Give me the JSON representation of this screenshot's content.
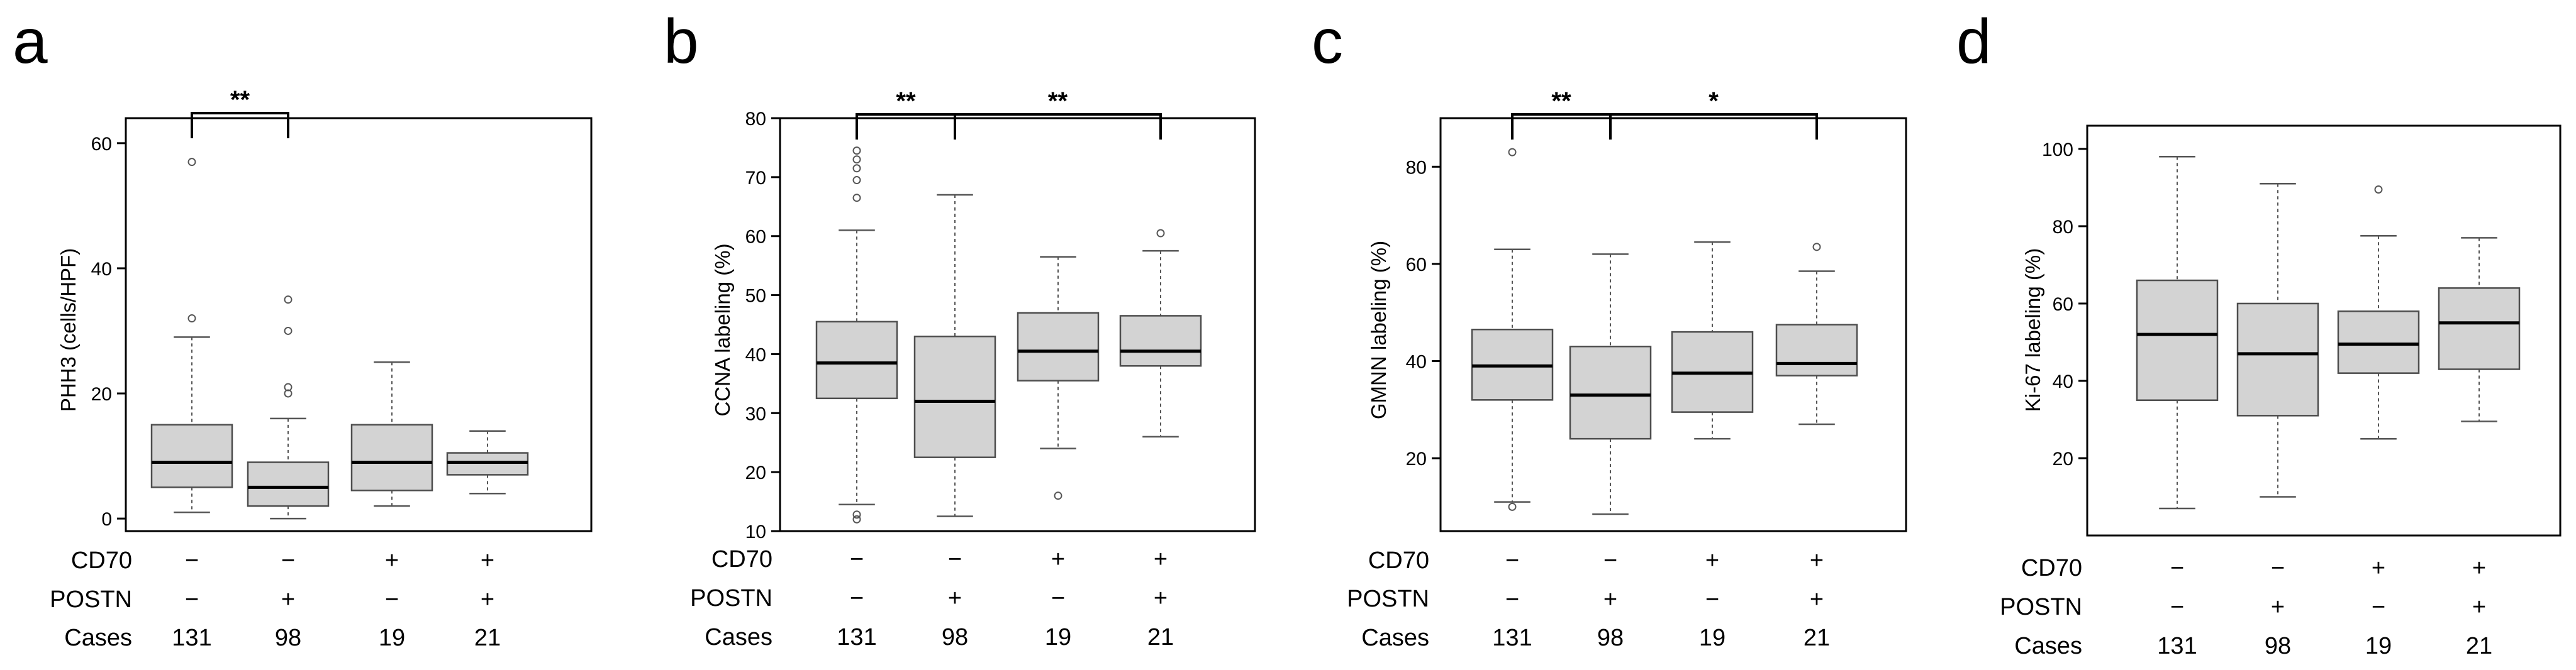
{
  "chart_data": [
    {
      "type": "box",
      "panel": "a",
      "ylabel": "PHH3 (cells/HPF)",
      "ylim": [
        -2,
        64
      ],
      "yticks": [
        0,
        20,
        40,
        60
      ],
      "ytick_labels": [
        "0",
        "20",
        "40",
        "60"
      ],
      "categories": [
        "CD70 − / POSTN −",
        "CD70 − / POSTN +",
        "CD70 + / POSTN −",
        "CD70 + / POSTN +"
      ],
      "boxes": [
        {
          "min": 1,
          "q1": 5,
          "median": 9,
          "q3": 15,
          "max": 29,
          "outliers": [
            32,
            57
          ]
        },
        {
          "min": 0,
          "q1": 2,
          "median": 5,
          "q3": 9,
          "max": 16,
          "outliers": [
            20,
            21,
            30,
            35
          ]
        },
        {
          "min": 2,
          "q1": 4.5,
          "median": 9,
          "q3": 15,
          "max": 25,
          "outliers": []
        },
        {
          "min": 4,
          "q1": 7,
          "median": 9,
          "q3": 10.5,
          "max": 14,
          "outliers": []
        }
      ],
      "significance": [
        {
          "from": 1,
          "to": 2,
          "label": "**"
        }
      ]
    },
    {
      "type": "box",
      "panel": "b",
      "ylabel": "CCNA labeling (%)",
      "ylim": [
        10,
        80
      ],
      "yticks": [
        10,
        20,
        30,
        40,
        50,
        60,
        70,
        80
      ],
      "ytick_labels": [
        "10",
        "20",
        "30",
        "40",
        "50",
        "60",
        "70",
        "80"
      ],
      "categories": [
        "CD70 − / POSTN −",
        "CD70 − / POSTN +",
        "CD70 + / POSTN −",
        "CD70 + / POSTN +"
      ],
      "boxes": [
        {
          "min": 14.5,
          "q1": 32.5,
          "median": 38.5,
          "q3": 45.5,
          "max": 61,
          "outliers": [
            12,
            12.8,
            66.5,
            69.5,
            71.5,
            73,
            74.5
          ]
        },
        {
          "min": 12.5,
          "q1": 22.5,
          "median": 32,
          "q3": 43,
          "max": 67,
          "outliers": []
        },
        {
          "min": 24,
          "q1": 35.5,
          "median": 40.5,
          "q3": 47,
          "max": 56.5,
          "outliers": [
            16
          ]
        },
        {
          "min": 26,
          "q1": 38,
          "median": 40.5,
          "q3": 46.5,
          "max": 57.5,
          "outliers": [
            60.5
          ]
        }
      ],
      "significance": [
        {
          "from": 1,
          "to": 2,
          "label": "**"
        },
        {
          "from": 2,
          "to": 4,
          "label": "**"
        }
      ]
    },
    {
      "type": "box",
      "panel": "c",
      "ylabel": "GMNN labeling (%)",
      "ylim": [
        5,
        90
      ],
      "yticks": [
        20,
        40,
        60,
        80
      ],
      "ytick_labels": [
        "20",
        "40",
        "60",
        "80"
      ],
      "categories": [
        "CD70 − / POSTN −",
        "CD70 − / POSTN +",
        "CD70 + / POSTN −",
        "CD70 + / POSTN +"
      ],
      "boxes": [
        {
          "min": 11,
          "q1": 32,
          "median": 39,
          "q3": 46.5,
          "max": 63,
          "outliers": [
            10,
            83
          ]
        },
        {
          "min": 8.5,
          "q1": 24,
          "median": 33,
          "q3": 43,
          "max": 62,
          "outliers": []
        },
        {
          "min": 24,
          "q1": 29.5,
          "median": 37.5,
          "q3": 46,
          "max": 64.5,
          "outliers": []
        },
        {
          "min": 27,
          "q1": 37,
          "median": 39.5,
          "q3": 47.5,
          "max": 58.5,
          "outliers": [
            63.5
          ]
        }
      ],
      "significance": [
        {
          "from": 1,
          "to": 2,
          "label": "**"
        },
        {
          "from": 2,
          "to": 4,
          "label": "*"
        }
      ]
    },
    {
      "type": "box",
      "panel": "d",
      "ylabel": "Ki-67 labeling (%)",
      "ylim": [
        0,
        106
      ],
      "yticks": [
        20,
        40,
        60,
        80,
        100
      ],
      "ytick_labels": [
        "20",
        "40",
        "60",
        "80",
        "100"
      ],
      "categories": [
        "CD70 − / POSTN −",
        "CD70 − / POSTN +",
        "CD70 + / POSTN −",
        "CD70 + / POSTN +"
      ],
      "boxes": [
        {
          "min": 7,
          "q1": 35,
          "median": 52,
          "q3": 66,
          "max": 98,
          "outliers": []
        },
        {
          "min": 10,
          "q1": 31,
          "median": 47,
          "q3": 60,
          "max": 91,
          "outliers": []
        },
        {
          "min": 25,
          "q1": 42,
          "median": 49.5,
          "q3": 58,
          "max": 77.5,
          "outliers": [
            89.5
          ]
        },
        {
          "min": 29.5,
          "q1": 43,
          "median": 55,
          "q3": 64,
          "max": 77,
          "outliers": []
        }
      ],
      "significance": []
    }
  ],
  "table": {
    "row_labels": [
      "CD70",
      "POSTN",
      "Cases"
    ],
    "cd70": [
      "−",
      "−",
      "+",
      "+"
    ],
    "postn": [
      "−",
      "+",
      "−",
      "+"
    ],
    "cases": [
      "131",
      "98",
      "19",
      "21"
    ]
  }
}
